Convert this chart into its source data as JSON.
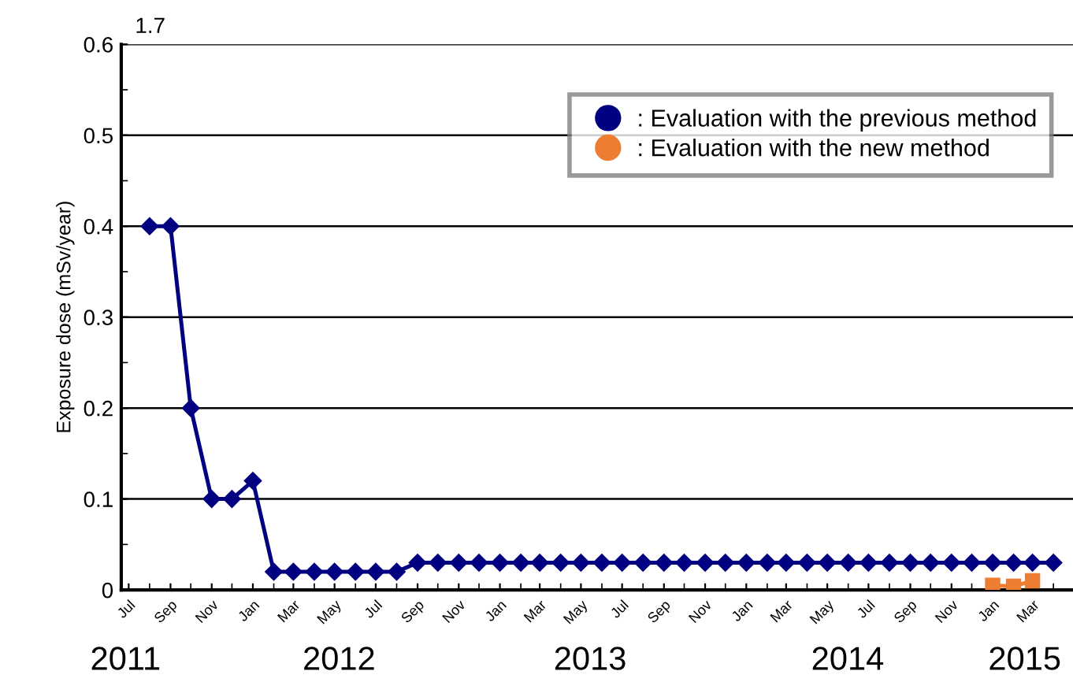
{
  "chart_data": {
    "type": "line",
    "ylabel": "Exposure dose (mSv/year)",
    "x": [
      "2011-08",
      "2011-09",
      "2011-10",
      "2011-11",
      "2011-12",
      "2012-01",
      "2012-02",
      "2012-03",
      "2012-04",
      "2012-05",
      "2012-06",
      "2012-07",
      "2012-08",
      "2012-09",
      "2012-10",
      "2012-11",
      "2012-12",
      "2013-01",
      "2013-02",
      "2013-03",
      "2013-04",
      "2013-05",
      "2013-06",
      "2013-07",
      "2013-08",
      "2013-09",
      "2013-10",
      "2013-11",
      "2013-12",
      "2014-01",
      "2014-02",
      "2014-03",
      "2014-04",
      "2014-05",
      "2014-06",
      "2014-07",
      "2014-08",
      "2014-09",
      "2014-10",
      "2014-11",
      "2014-12",
      "2015-01",
      "2015-02",
      "2015-03",
      "2015-04"
    ],
    "series": [
      {
        "name": ": Evaluation with the previous method",
        "color": "#000080",
        "marker": "diamond",
        "line_style": "solid",
        "values": [
          0.4,
          0.4,
          0.2,
          0.1,
          0.1,
          0.12,
          0.02,
          0.02,
          0.02,
          0.02,
          0.02,
          0.02,
          0.02,
          0.03,
          0.03,
          0.03,
          0.03,
          0.03,
          0.03,
          0.03,
          0.03,
          0.03,
          0.03,
          0.03,
          0.03,
          0.03,
          0.03,
          0.03,
          0.03,
          0.03,
          0.03,
          0.03,
          0.03,
          0.03,
          0.03,
          0.03,
          0.03,
          0.03,
          0.03,
          0.03,
          0.03,
          0.03,
          0.03,
          0.03,
          0.03
        ]
      },
      {
        "name": ": Evaluation with the new method",
        "color": "#ed7d31",
        "marker": "square",
        "line_style": "solid",
        "x": [
          "2015-01",
          "2015-02",
          "2015-03"
        ],
        "values": [
          0.005,
          0.004,
          0.01
        ]
      }
    ],
    "xlim": [
      "2011-06-20",
      "2015-04-30"
    ],
    "xticks": [
      {
        "value": "2011-07-01",
        "label": "Jul"
      },
      {
        "value": "2011-08-01",
        "label": null
      },
      {
        "value": "2011-09-01",
        "label": "Sep"
      },
      {
        "value": "2011-10-01",
        "label": null
      },
      {
        "value": "2011-11-01",
        "label": "Nov"
      },
      {
        "value": "2011-12-01",
        "label": null
      },
      {
        "value": "2012-01-01",
        "label": "Jan"
      },
      {
        "value": "2012-02-01",
        "label": null
      },
      {
        "value": "2012-03-01",
        "label": "Mar"
      },
      {
        "value": "2012-04-01",
        "label": null
      },
      {
        "value": "2012-05-01",
        "label": "May"
      },
      {
        "value": "2012-06-01",
        "label": null
      },
      {
        "value": "2012-07-01",
        "label": "Jul"
      },
      {
        "value": "2012-08-01",
        "label": null
      },
      {
        "value": "2012-09-01",
        "label": "Sep"
      },
      {
        "value": "2012-10-01",
        "label": null
      },
      {
        "value": "2012-11-01",
        "label": "Nov"
      },
      {
        "value": "2012-12-01",
        "label": null
      },
      {
        "value": "2013-01-01",
        "label": "Jan"
      },
      {
        "value": "2013-02-01",
        "label": null
      },
      {
        "value": "2013-03-01",
        "label": "Mar"
      },
      {
        "value": "2013-04-01",
        "label": null
      },
      {
        "value": "2013-05-01",
        "label": "May"
      },
      {
        "value": "2013-06-01",
        "label": null
      },
      {
        "value": "2013-07-01",
        "label": "Jul"
      },
      {
        "value": "2013-08-01",
        "label": null
      },
      {
        "value": "2013-09-01",
        "label": "Sep"
      },
      {
        "value": "2013-10-01",
        "label": null
      },
      {
        "value": "2013-11-01",
        "label": "Nov"
      },
      {
        "value": "2013-12-01",
        "label": null
      },
      {
        "value": "2014-01-01",
        "label": "Jan"
      },
      {
        "value": "2014-02-01",
        "label": null
      },
      {
        "value": "2014-03-01",
        "label": "Mar"
      },
      {
        "value": "2014-04-01",
        "label": null
      },
      {
        "value": "2014-05-01",
        "label": "May"
      },
      {
        "value": "2014-06-01",
        "label": null
      },
      {
        "value": "2014-07-01",
        "label": "Jul"
      },
      {
        "value": "2014-08-01",
        "label": null
      },
      {
        "value": "2014-09-01",
        "label": "Sep"
      },
      {
        "value": "2014-10-01",
        "label": null
      },
      {
        "value": "2014-11-01",
        "label": "Nov"
      },
      {
        "value": "2014-12-01",
        "label": null
      },
      {
        "value": "2015-01-01",
        "label": "Jan"
      },
      {
        "value": "2015-02-01",
        "label": null
      },
      {
        "value": "2015-03-01",
        "label": "Mar"
      },
      {
        "value": "2015-04-01",
        "label": null
      }
    ],
    "ylim": [
      0,
      0.6
    ],
    "yticks": [
      0,
      {
        "value": 0.05,
        "label": null
      },
      0.1,
      {
        "value": 0.15,
        "label": null
      },
      0.2,
      {
        "value": 0.25,
        "label": null
      },
      0.3,
      {
        "value": 0.35,
        "label": null
      },
      0.4,
      {
        "value": 0.45,
        "label": null
      },
      0.5,
      {
        "value": 0.55,
        "label": null
      },
      0.6
    ],
    "grid": "y",
    "legend": "top right",
    "annotations": [
      "1.7",
      "2011",
      "2012",
      "2013",
      "2014",
      "2015"
    ]
  }
}
